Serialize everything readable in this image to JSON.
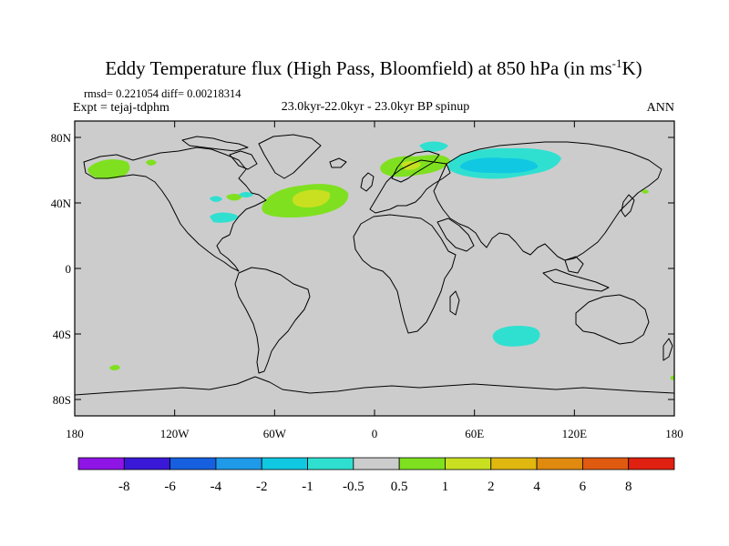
{
  "title_main": "Eddy Temperature flux (High Pass, Bloomfield) at 850 hPa (in ms",
  "title_sup": "-1",
  "title_end": "K)",
  "stats": "rmsd= 0.221054 diff= 0.00218314",
  "expt": "Expt = tejaj-tdphm",
  "period": "23.0kyr-22.0kyr - 23.0kyr BP spinup",
  "season": "ANN",
  "lat_ticks": [
    {
      "value": 80,
      "label": "80N"
    },
    {
      "value": 40,
      "label": "40N"
    },
    {
      "value": 0,
      "label": "0"
    },
    {
      "value": -40,
      "label": "40S"
    },
    {
      "value": -80,
      "label": "80S"
    }
  ],
  "lon_ticks": [
    {
      "value": -180,
      "label": "180"
    },
    {
      "value": -120,
      "label": "120W"
    },
    {
      "value": -60,
      "label": "60W"
    },
    {
      "value": 0,
      "label": "0"
    },
    {
      "value": 60,
      "label": "60E"
    },
    {
      "value": 120,
      "label": "120E"
    },
    {
      "value": 180,
      "label": "180"
    }
  ],
  "colorbar": {
    "colors": [
      "#8f14e6",
      "#3a18d8",
      "#1660e0",
      "#1e9ae8",
      "#10c8e2",
      "#2fe0d0",
      "#cccccc",
      "#7fe020",
      "#c8e020",
      "#e0b810",
      "#e08a10",
      "#e05a10",
      "#e02010"
    ],
    "labels": [
      "-8",
      "-6",
      "-4",
      "-2",
      "-1",
      "-0.5",
      "0.5",
      "1",
      "2",
      "4",
      "6",
      "8"
    ]
  },
  "colors": {
    "ocean_land_fill": "#cccccc",
    "neg_small": "#2fe0d0",
    "neg_medium": "#10c8e2",
    "pos_small": "#7fe020",
    "pos_medium": "#c8e020"
  }
}
